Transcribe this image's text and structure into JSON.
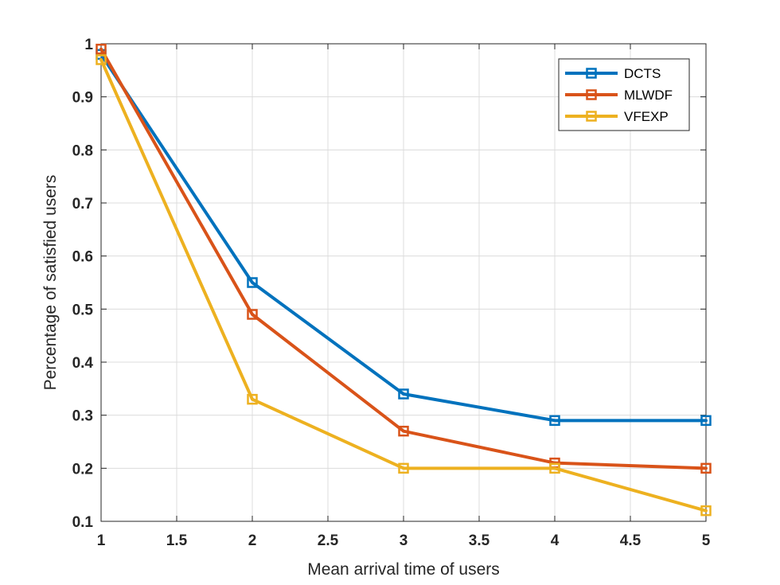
{
  "chart_data": {
    "type": "line",
    "title": "",
    "xlabel": "Mean arrival time of users",
    "ylabel": "Percentage of satisfied users",
    "xlim": [
      1,
      5
    ],
    "ylim": [
      0.1,
      1
    ],
    "x_ticks": [
      1,
      1.5,
      2,
      2.5,
      3,
      3.5,
      4,
      4.5,
      5
    ],
    "y_ticks": [
      0.1,
      0.2,
      0.3,
      0.4,
      0.5,
      0.6,
      0.7,
      0.8,
      0.9,
      1
    ],
    "x_tick_labels": [
      "1",
      "1.5",
      "2",
      "2.5",
      "3",
      "3.5",
      "4",
      "4.5",
      "5"
    ],
    "y_tick_labels": [
      "0.1",
      "0.2",
      "0.3",
      "0.4",
      "0.5",
      "0.6",
      "0.7",
      "0.8",
      "0.9",
      "1"
    ],
    "grid": true,
    "legend_position": "top-right",
    "marker": "square",
    "x": [
      1,
      2,
      3,
      4,
      5
    ],
    "series": [
      {
        "name": "DCTS",
        "color": "#0072BD",
        "values": [
          0.98,
          0.55,
          0.34,
          0.29,
          0.29
        ]
      },
      {
        "name": "MLWDF",
        "color": "#D95319",
        "values": [
          0.99,
          0.49,
          0.27,
          0.21,
          0.2
        ]
      },
      {
        "name": "VFEXP",
        "color": "#EDB120",
        "values": [
          0.97,
          0.33,
          0.2,
          0.2,
          0.12
        ]
      }
    ]
  }
}
